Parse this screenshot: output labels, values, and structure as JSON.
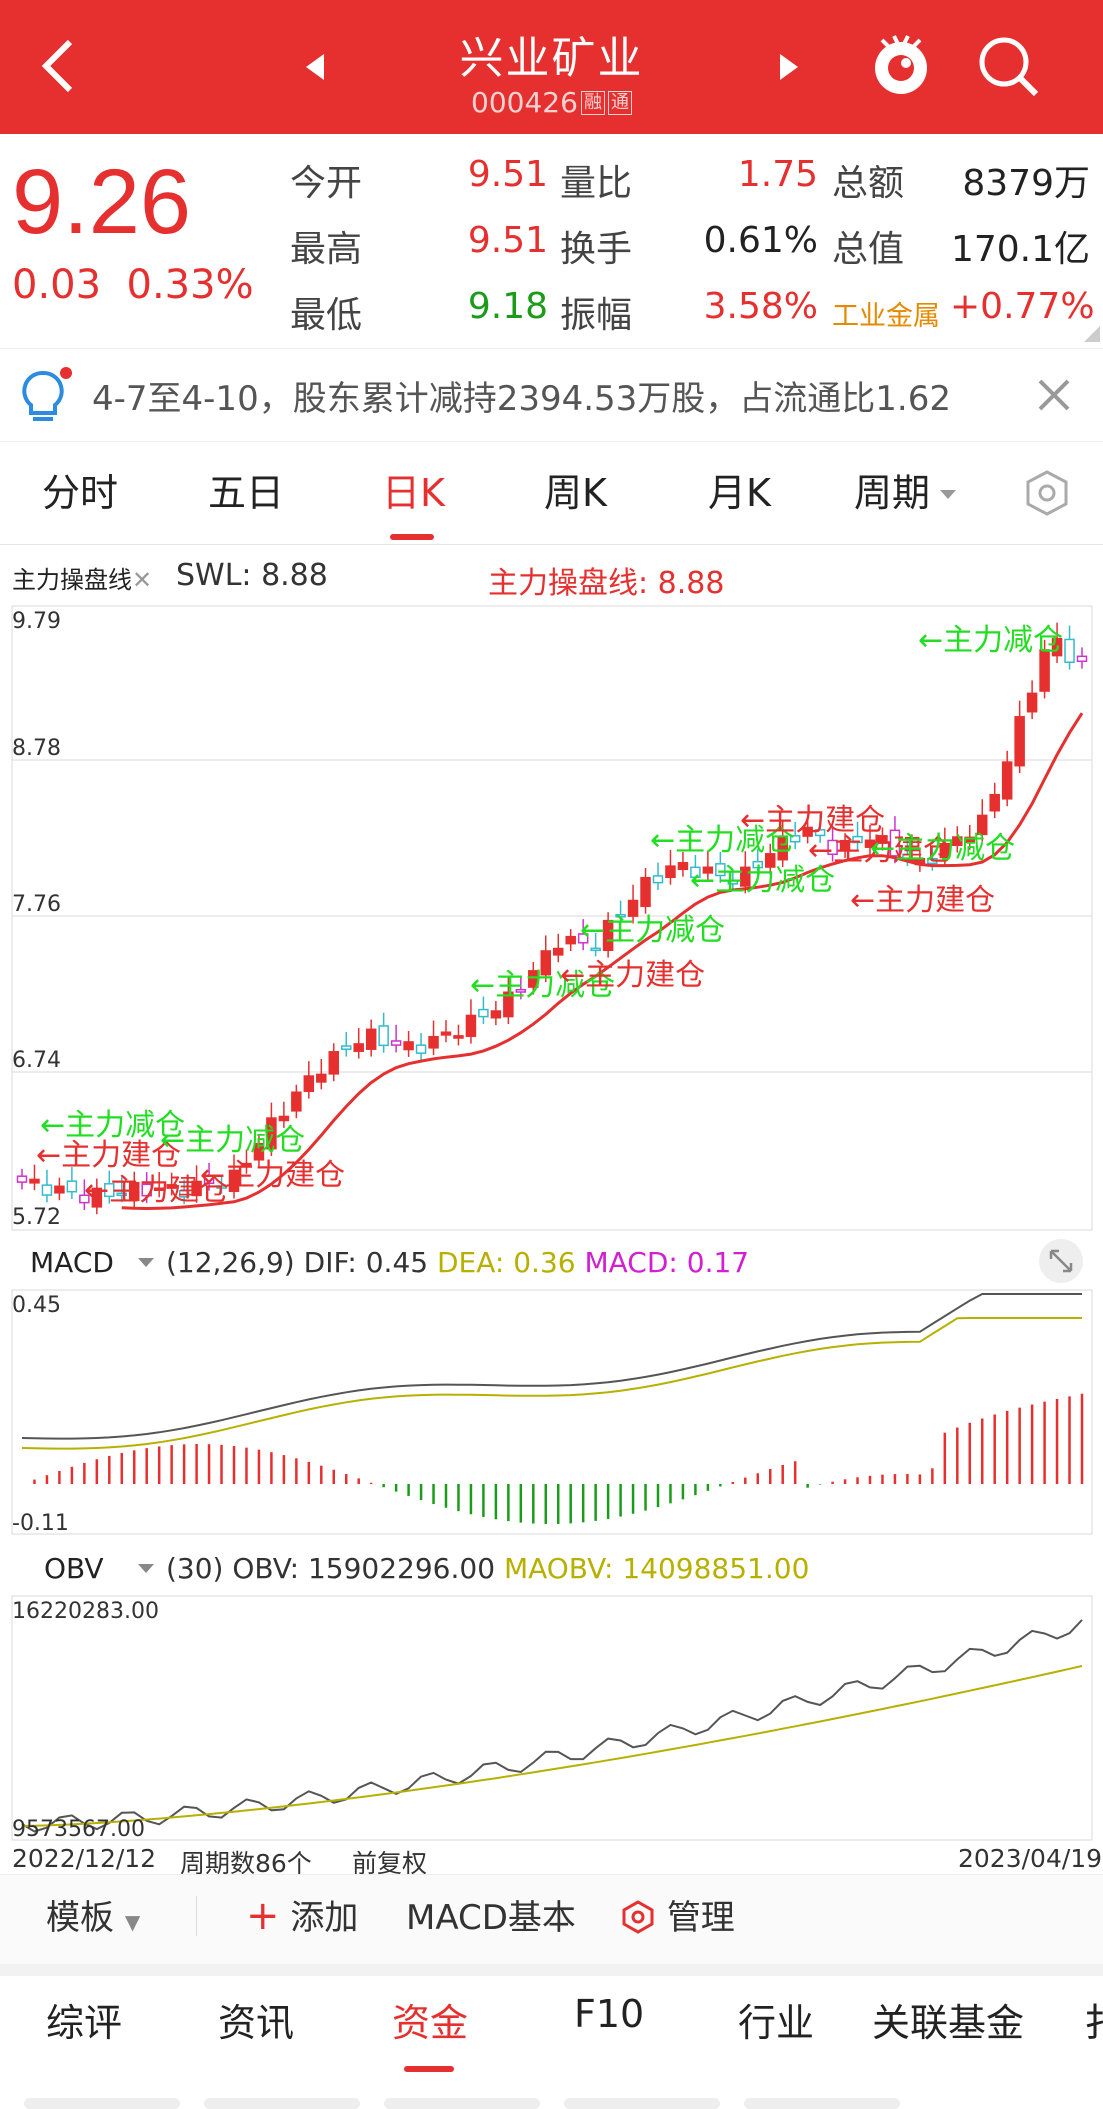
{
  "header": {
    "title": "兴业矿业",
    "code": "000426",
    "tags": [
      "融",
      "通"
    ]
  },
  "quote": {
    "price": "9.26",
    "change": "0.03",
    "change_pct": "0.33%",
    "rows": [
      [
        {
          "label": "今开",
          "value": "9.51",
          "color": "red"
        },
        {
          "label": "量比",
          "value": "1.75",
          "color": "red"
        },
        {
          "label": "总额",
          "value": "8379万",
          "color": "dark"
        }
      ],
      [
        {
          "label": "最高",
          "value": "9.51",
          "color": "red"
        },
        {
          "label": "换手",
          "value": "0.61%",
          "color": "dark"
        },
        {
          "label": "总值",
          "value": "170.1亿",
          "color": "dark"
        }
      ],
      [
        {
          "label": "最低",
          "value": "9.18",
          "color": "green"
        },
        {
          "label": "振幅",
          "value": "3.58%",
          "color": "red"
        },
        {
          "label": "工业金属",
          "value": "+0.77%",
          "color": "red"
        }
      ]
    ]
  },
  "notice": {
    "text": "4-7至4-10，股东累计减持2394.53万股，占流通比1.62"
  },
  "tabs": {
    "items": [
      "分时",
      "五日",
      "日K",
      "周K",
      "月K",
      "周期"
    ],
    "active_index": 2
  },
  "kline": {
    "indicator_name": "主力操盘线",
    "swl_label": "SWL: 8.88",
    "main_label": "主力操盘线: 8.88",
    "y_ticks": [
      "9.79",
      "8.78",
      "7.76",
      "6.74",
      "5.72"
    ],
    "annotations": {
      "reduce": "←主力减仓",
      "build": "←主力建仓"
    }
  },
  "macd": {
    "name": "MACD",
    "params": "(12,26,9)",
    "dif": "DIF: 0.45",
    "dea": "DEA: 0.36",
    "macd": "MACD: 0.17",
    "y_top": "0.45",
    "y_bottom": "-0.11"
  },
  "obv": {
    "name": "OBV",
    "params": "(30)",
    "obv": "OBV: 15902296.00",
    "maobv": "MAOBV: 14098851.00",
    "y_top": "16220283.00",
    "y_bottom": "9573567.00",
    "start_date": "2022/12/12",
    "period_count": "周期数86个",
    "adjust": "前复权",
    "end_date": "2023/04/19"
  },
  "toolbar": {
    "template": "模板",
    "add": "添加",
    "macd_basic": "MACD基本",
    "manage": "管理"
  },
  "bottom_nav": {
    "items": [
      "综评",
      "资讯",
      "资金",
      "F10",
      "行业",
      "关联基金",
      "扌"
    ],
    "active_index": 2
  },
  "colors": {
    "brand_red": "#e5302f",
    "up": "#e5302f",
    "down": "#1a9c1a",
    "annotation_green": "#22dd22",
    "dea_yellow": "#b8b000",
    "macd_magenta": "#d020d0"
  }
}
